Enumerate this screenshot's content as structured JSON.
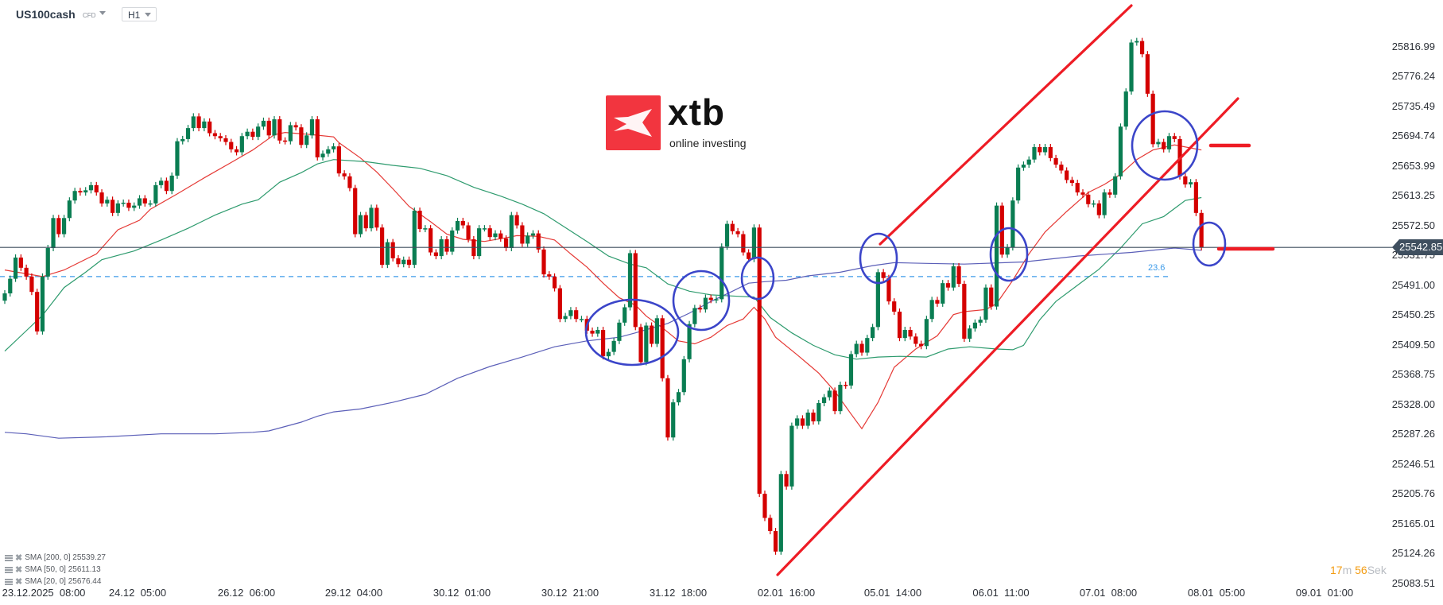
{
  "header": {
    "symbol": "US100cash",
    "instrument_type": "CFD",
    "timeframe": "H1"
  },
  "logo": {
    "brand": "xtb",
    "tagline": "online investing",
    "color": "#f2353f"
  },
  "countdown": {
    "minutes": "17",
    "minutes_unit": "m",
    "seconds": "56",
    "seconds_unit": "Sek"
  },
  "legend": [
    {
      "label": "SMA [200, 0] 25539.27"
    },
    {
      "label": "SMA [50, 0] 25611.13"
    },
    {
      "label": "SMA [20, 0] 25676.44"
    }
  ],
  "fib_label": "23.6",
  "current_price_label": "25542.85",
  "chart_data": {
    "type": "candlestick",
    "symbol": "US100cash",
    "timeframe": "H1",
    "colors": {
      "up": "#0a7d52",
      "down": "#d40000",
      "sma20": "#e53935",
      "sma50": "#2e9b6e",
      "sma200": "#5b5fb8",
      "price_line": "#3f4f5f",
      "fib": "#3d9be9",
      "annotation_line": "#ee1c25",
      "annotation_circle": "#3b45c9"
    },
    "ylim": [
      25083.51,
      25816.99
    ],
    "y_ticks": [
      "25816.99",
      "25776.24",
      "25735.49",
      "25694.74",
      "25653.99",
      "25613.25",
      "25572.50",
      "25531.75",
      "25491.00",
      "25450.25",
      "25409.50",
      "25368.75",
      "25328.00",
      "25287.26",
      "25246.51",
      "25205.76",
      "25165.01",
      "25124.26",
      "25083.51"
    ],
    "x_ticks": [
      "23.12.2025  08:00",
      "24.12  05:00",
      "26.12  06:00",
      "29.12  04:00",
      "30.12  01:00",
      "30.12  21:00",
      "31.12  18:00",
      "02.01  16:00",
      "05.01  14:00",
      "06.01  11:00",
      "07.01  08:00",
      "08.01  05:00",
      "09.01  01:00"
    ],
    "current_price": 25542.85,
    "fib_level": {
      "label": "23.6",
      "price": 25503
    },
    "first_open": 25470,
    "closes": [
      25480,
      25500,
      25529,
      25515,
      25503,
      25482,
      25428,
      25503,
      25542,
      25583,
      25561,
      25583,
      25607,
      25620,
      25618,
      25621,
      25628,
      25618,
      25603,
      25608,
      25590,
      25603,
      25604,
      25597,
      25600,
      25610,
      25603,
      25603,
      25628,
      25634,
      25620,
      25641,
      25688,
      25691,
      25706,
      25722,
      25706,
      25715,
      25699,
      25695,
      25692,
      25687,
      25677,
      25673,
      25695,
      25701,
      25694,
      25708,
      25716,
      25696,
      25718,
      25689,
      25688,
      25710,
      25707,
      25683,
      25696,
      25718,
      25666,
      25671,
      25677,
      25681,
      25644,
      25640,
      25624,
      25561,
      25587,
      25569,
      25597,
      25570,
      25519,
      25550,
      25528,
      25520,
      25526,
      25519,
      25593,
      25568,
      25569,
      25536,
      25531,
      25554,
      25537,
      25566,
      25579,
      25573,
      25554,
      25531,
      25569,
      25569,
      25557,
      25562,
      25555,
      25542,
      25587,
      25573,
      25548,
      25559,
      25562,
      25540,
      25506,
      25503,
      25487,
      25445,
      25449,
      25457,
      25445,
      25445,
      25429,
      25425,
      25430,
      25394,
      25400,
      25415,
      25440,
      25461,
      25535,
      25434,
      25386,
      25436,
      25411,
      25446,
      25364,
      25283,
      25331,
      25345,
      25390,
      25438,
      25460,
      25458,
      25474,
      25471,
      25472,
      25544,
      25575,
      25565,
      25561,
      25536,
      25527,
      25570,
      25206,
      25173,
      25155,
      25127,
      25233,
      25216,
      25299,
      25309,
      25299,
      25317,
      25305,
      25330,
      25338,
      25347,
      25319,
      25355,
      25354,
      25397,
      25411,
      25399,
      25419,
      25434,
      25509,
      25501,
      25469,
      25455,
      25419,
      25430,
      25421,
      25411,
      25408,
      25445,
      25471,
      25466,
      25494,
      25488,
      25517,
      25493,
      25418,
      25432,
      25440,
      25444,
      25488,
      25462,
      25600,
      25533,
      25543,
      25607,
      25652,
      25656,
      25663,
      25680,
      25673,
      25680,
      25665,
      25656,
      25648,
      25635,
      25631,
      25618,
      25615,
      25602,
      25603,
      25587,
      25618,
      25615,
      25640,
      25708,
      25756,
      25823,
      25825,
      25807,
      25753,
      25684,
      25687,
      25677,
      25695,
      25691,
      25640,
      25629,
      25632,
      25590,
      25543
    ],
    "series": [
      {
        "name": "SMA [20, 0]",
        "last": 25676.44,
        "points": [
          [
            1,
            25512
          ],
          [
            8,
            25503
          ],
          [
            12,
            25512
          ],
          [
            18,
            25534
          ],
          [
            22,
            25567
          ],
          [
            26,
            25580
          ],
          [
            28,
            25595
          ],
          [
            33,
            25616
          ],
          [
            38,
            25638
          ],
          [
            43,
            25659
          ],
          [
            47,
            25676
          ],
          [
            51,
            25697
          ],
          [
            53,
            25700
          ],
          [
            58,
            25697
          ],
          [
            62,
            25694
          ],
          [
            63,
            25686
          ],
          [
            67,
            25665
          ],
          [
            70,
            25646
          ],
          [
            73,
            25623
          ],
          [
            76,
            25599
          ],
          [
            80,
            25578
          ],
          [
            83,
            25561
          ],
          [
            86,
            25554
          ],
          [
            90,
            25551
          ],
          [
            94,
            25556
          ],
          [
            96,
            25559
          ],
          [
            100,
            25558
          ],
          [
            103,
            25553
          ],
          [
            106,
            25534
          ],
          [
            109,
            25516
          ],
          [
            112,
            25494
          ],
          [
            115,
            25474
          ],
          [
            118,
            25464
          ],
          [
            120,
            25449
          ],
          [
            123,
            25433
          ],
          [
            126,
            25415
          ],
          [
            129,
            25411
          ],
          [
            132,
            25420
          ],
          [
            135,
            25436
          ],
          [
            138,
            25445
          ],
          [
            140,
            25461
          ],
          [
            142,
            25445
          ],
          [
            144,
            25420
          ],
          [
            148,
            25396
          ],
          [
            152,
            25371
          ],
          [
            155,
            25346
          ],
          [
            158,
            25315
          ],
          [
            160,
            25295
          ],
          [
            163,
            25331
          ],
          [
            166,
            25379
          ],
          [
            170,
            25404
          ],
          [
            174,
            25422
          ],
          [
            177,
            25451
          ],
          [
            179,
            25455
          ],
          [
            183,
            25458
          ],
          [
            185,
            25466
          ],
          [
            188,
            25498
          ],
          [
            191,
            25534
          ],
          [
            194,
            25564
          ],
          [
            198,
            25592
          ],
          [
            202,
            25618
          ],
          [
            205,
            25629
          ],
          [
            208,
            25643
          ],
          [
            211,
            25663
          ],
          [
            214,
            25676
          ],
          [
            218,
            25683
          ],
          [
            223,
            25676
          ]
        ]
      },
      {
        "name": "SMA [50, 0]",
        "last": 25611.13,
        "points": [
          [
            1,
            25401
          ],
          [
            5,
            25429
          ],
          [
            8,
            25450
          ],
          [
            12,
            25488
          ],
          [
            16,
            25509
          ],
          [
            19,
            25526
          ],
          [
            25,
            25538
          ],
          [
            30,
            25553
          ],
          [
            35,
            25569
          ],
          [
            40,
            25587
          ],
          [
            45,
            25602
          ],
          [
            48,
            25608
          ],
          [
            52,
            25632
          ],
          [
            56,
            25645
          ],
          [
            59,
            25657
          ],
          [
            62,
            25663
          ],
          [
            68,
            25660
          ],
          [
            73,
            25655
          ],
          [
            78,
            25651
          ],
          [
            83,
            25641
          ],
          [
            88,
            25625
          ],
          [
            93,
            25613
          ],
          [
            97,
            25602
          ],
          [
            101,
            25589
          ],
          [
            105,
            25570
          ],
          [
            109,
            25551
          ],
          [
            113,
            25531
          ],
          [
            117,
            25520
          ],
          [
            120,
            25515
          ],
          [
            124,
            25493
          ],
          [
            128,
            25483
          ],
          [
            132,
            25478
          ],
          [
            137,
            25476
          ],
          [
            140,
            25475
          ],
          [
            143,
            25447
          ],
          [
            147,
            25426
          ],
          [
            151,
            25409
          ],
          [
            155,
            25396
          ],
          [
            159,
            25390
          ],
          [
            163,
            25393
          ],
          [
            167,
            25394
          ],
          [
            172,
            25393
          ],
          [
            176,
            25404
          ],
          [
            180,
            25407
          ],
          [
            185,
            25404
          ],
          [
            188,
            25403
          ],
          [
            190,
            25409
          ],
          [
            193,
            25444
          ],
          [
            196,
            25469
          ],
          [
            200,
            25491
          ],
          [
            204,
            25513
          ],
          [
            208,
            25542
          ],
          [
            212,
            25575
          ],
          [
            216,
            25585
          ],
          [
            220,
            25607
          ],
          [
            223,
            25611
          ]
        ]
      },
      {
        "name": "SMA [200, 0]",
        "last": 25539.27,
        "points": [
          [
            1,
            25290
          ],
          [
            5,
            25288
          ],
          [
            11,
            25282
          ],
          [
            20,
            25284
          ],
          [
            30,
            25288
          ],
          [
            40,
            25288
          ],
          [
            47,
            25290
          ],
          [
            50,
            25292
          ],
          [
            53,
            25298
          ],
          [
            56,
            25304
          ],
          [
            59,
            25312
          ],
          [
            62,
            25318
          ],
          [
            67,
            25322
          ],
          [
            73,
            25331
          ],
          [
            79,
            25342
          ],
          [
            85,
            25364
          ],
          [
            91,
            25380
          ],
          [
            97,
            25393
          ],
          [
            103,
            25407
          ],
          [
            109,
            25415
          ],
          [
            115,
            25420
          ],
          [
            118,
            25426
          ],
          [
            124,
            25439
          ],
          [
            128,
            25453
          ],
          [
            132,
            25469
          ],
          [
            136,
            25483
          ],
          [
            139,
            25494
          ],
          [
            142,
            25496
          ],
          [
            146,
            25498
          ],
          [
            150,
            25504
          ],
          [
            156,
            25509
          ],
          [
            162,
            25518
          ],
          [
            166,
            25522
          ],
          [
            172,
            25521
          ],
          [
            179,
            25520
          ],
          [
            190,
            25523
          ],
          [
            200,
            25531
          ],
          [
            210,
            25536
          ],
          [
            218,
            25542
          ],
          [
            223,
            25539
          ]
        ]
      }
    ]
  }
}
